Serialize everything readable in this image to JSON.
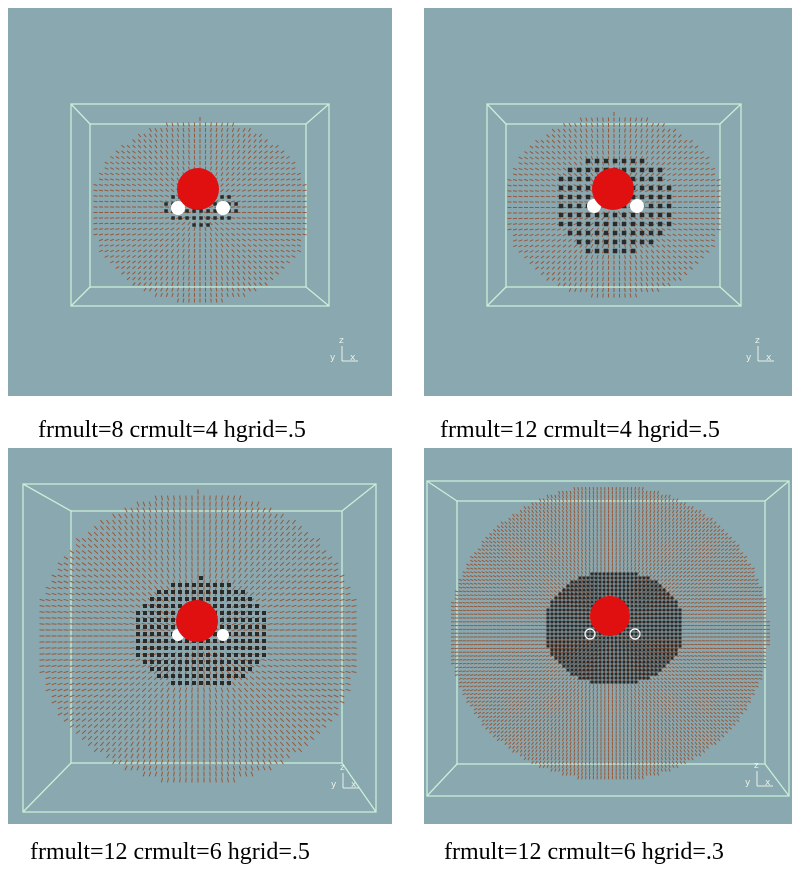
{
  "panels": [
    {
      "caption": "frmult=8 crmult=4 hgrid=.5",
      "axes": {
        "z": "z",
        "y": "y",
        "x": "x"
      }
    },
    {
      "caption": "frmult=12 crmult=4 hgrid=.5",
      "axes": {
        "z": "z",
        "y": "y",
        "x": "x"
      }
    },
    {
      "caption": "frmult=12 crmult=6 hgrid=.5",
      "axes": {
        "z": "z",
        "y": "y",
        "x": "x"
      }
    },
    {
      "caption": "frmult=12 crmult=6 hgrid=.3",
      "axes": {
        "z": "z",
        "y": "y",
        "x": "x"
      }
    }
  ],
  "colors": {
    "background": "#8aa8b0",
    "box": "#c8f0d8",
    "fine_grid": "#9a4a25",
    "coarse_grid": "#2a2a2a",
    "oxygen": "#e01010",
    "hydrogen": "#ffffff"
  }
}
